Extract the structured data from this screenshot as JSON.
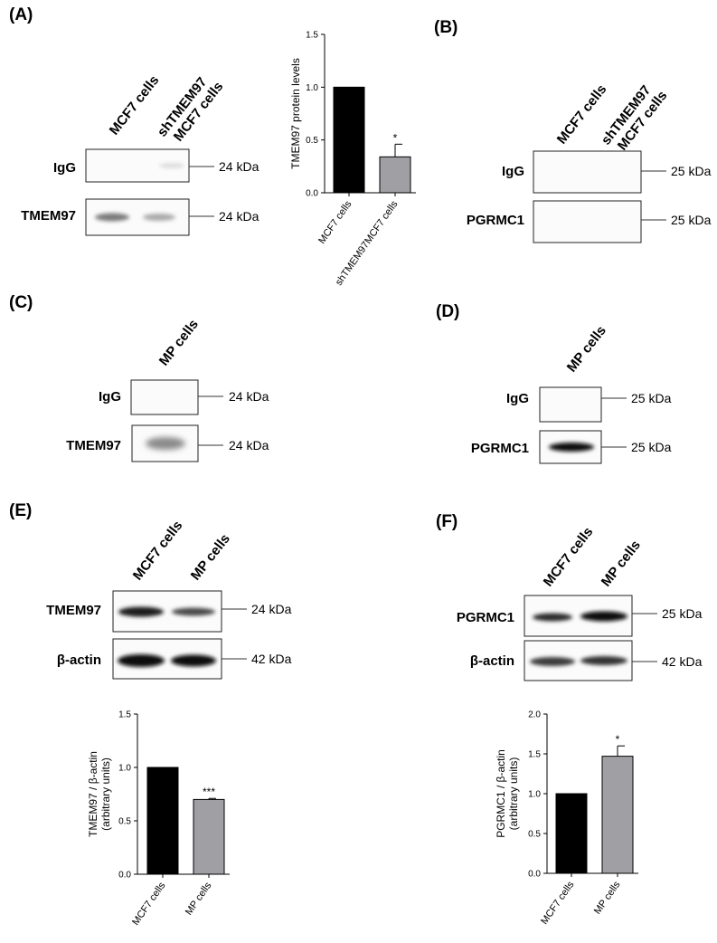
{
  "panels": {
    "A": {
      "label": "(A)",
      "lanes": [
        "MCF7 cells",
        "shTMEM97",
        "MCF7 cells"
      ],
      "rows": [
        {
          "label": "IgG",
          "kda": "24 kDa"
        },
        {
          "label": "TMEM97",
          "kda": "24 kDa"
        }
      ]
    },
    "B": {
      "label": "(B)",
      "lanes": [
        "MCF7 cells",
        "shTMEM97",
        "MCF7 cells"
      ],
      "rows": [
        {
          "label": "IgG",
          "kda": "25 kDa"
        },
        {
          "label": "PGRMC1",
          "kda": "25 kDa"
        }
      ]
    },
    "C": {
      "label": "(C)",
      "lanes": [
        "MP cells"
      ],
      "rows": [
        {
          "label": "IgG",
          "kda": "24 kDa"
        },
        {
          "label": "TMEM97",
          "kda": "24 kDa"
        }
      ]
    },
    "D": {
      "label": "(D)",
      "lanes": [
        "MP cells"
      ],
      "rows": [
        {
          "label": "IgG",
          "kda": "25 kDa"
        },
        {
          "label": "PGRMC1",
          "kda": "25 kDa"
        }
      ]
    },
    "E": {
      "label": "(E)",
      "lanes": [
        "MCF7 cells",
        "MP cells"
      ],
      "rows": [
        {
          "label": "TMEM97",
          "kda": "24 kDa"
        },
        {
          "label": "β-actin",
          "kda": "42 kDa"
        }
      ]
    },
    "F": {
      "label": "(F)",
      "lanes": [
        "MCF7 cells",
        "MP cells"
      ],
      "rows": [
        {
          "label": "PGRMC1",
          "kda": "25 kDa"
        },
        {
          "label": "β-actin",
          "kda": "42 kDa"
        }
      ]
    }
  },
  "chart_data": [
    {
      "id": "A",
      "type": "bar",
      "categories": [
        "MCF7 cells",
        "shTMEM97MCF7 cells"
      ],
      "values": [
        1.0,
        0.34
      ],
      "errors": [
        0,
        0.12
      ],
      "significance": [
        "",
        "*"
      ],
      "colors": [
        "#000000",
        "#a0a0a4"
      ],
      "ylabel": "TMEM97 protein levels",
      "ylabel2": "",
      "ylim": [
        0,
        1.5
      ],
      "yticks": [
        0.0,
        0.5,
        1.0,
        1.5
      ],
      "ytick_labels": [
        "0.0",
        "0.5",
        "1.0",
        "1.5"
      ],
      "grid": false
    },
    {
      "id": "E",
      "type": "bar",
      "categories": [
        "MCF7 cells",
        "MP cells"
      ],
      "values": [
        1.0,
        0.7
      ],
      "errors": [
        0,
        0.01
      ],
      "significance": [
        "",
        "***"
      ],
      "colors": [
        "#000000",
        "#a0a0a4"
      ],
      "ylabel": "TMEM97 / β-actin",
      "ylabel2": "(arbitrary units)",
      "ylim": [
        0,
        1.5
      ],
      "yticks": [
        0.0,
        0.5,
        1.0,
        1.5
      ],
      "ytick_labels": [
        "0.0",
        "0.5",
        "1.0",
        "1.5"
      ],
      "grid": false
    },
    {
      "id": "F",
      "type": "bar",
      "categories": [
        "MCF7 cells",
        "MP cells"
      ],
      "values": [
        1.0,
        1.47
      ],
      "errors": [
        0,
        0.13
      ],
      "significance": [
        "",
        "*"
      ],
      "colors": [
        "#000000",
        "#a0a0a4"
      ],
      "ylabel": "PGRMC1 / β-actin",
      "ylabel2": "(arbitrary units)",
      "ylim": [
        0,
        2.0
      ],
      "yticks": [
        0.0,
        0.5,
        1.0,
        1.5,
        2.0
      ],
      "ytick_labels": [
        "0.0",
        "0.5",
        "1.0",
        "1.5",
        "2.0"
      ],
      "grid": false
    }
  ]
}
